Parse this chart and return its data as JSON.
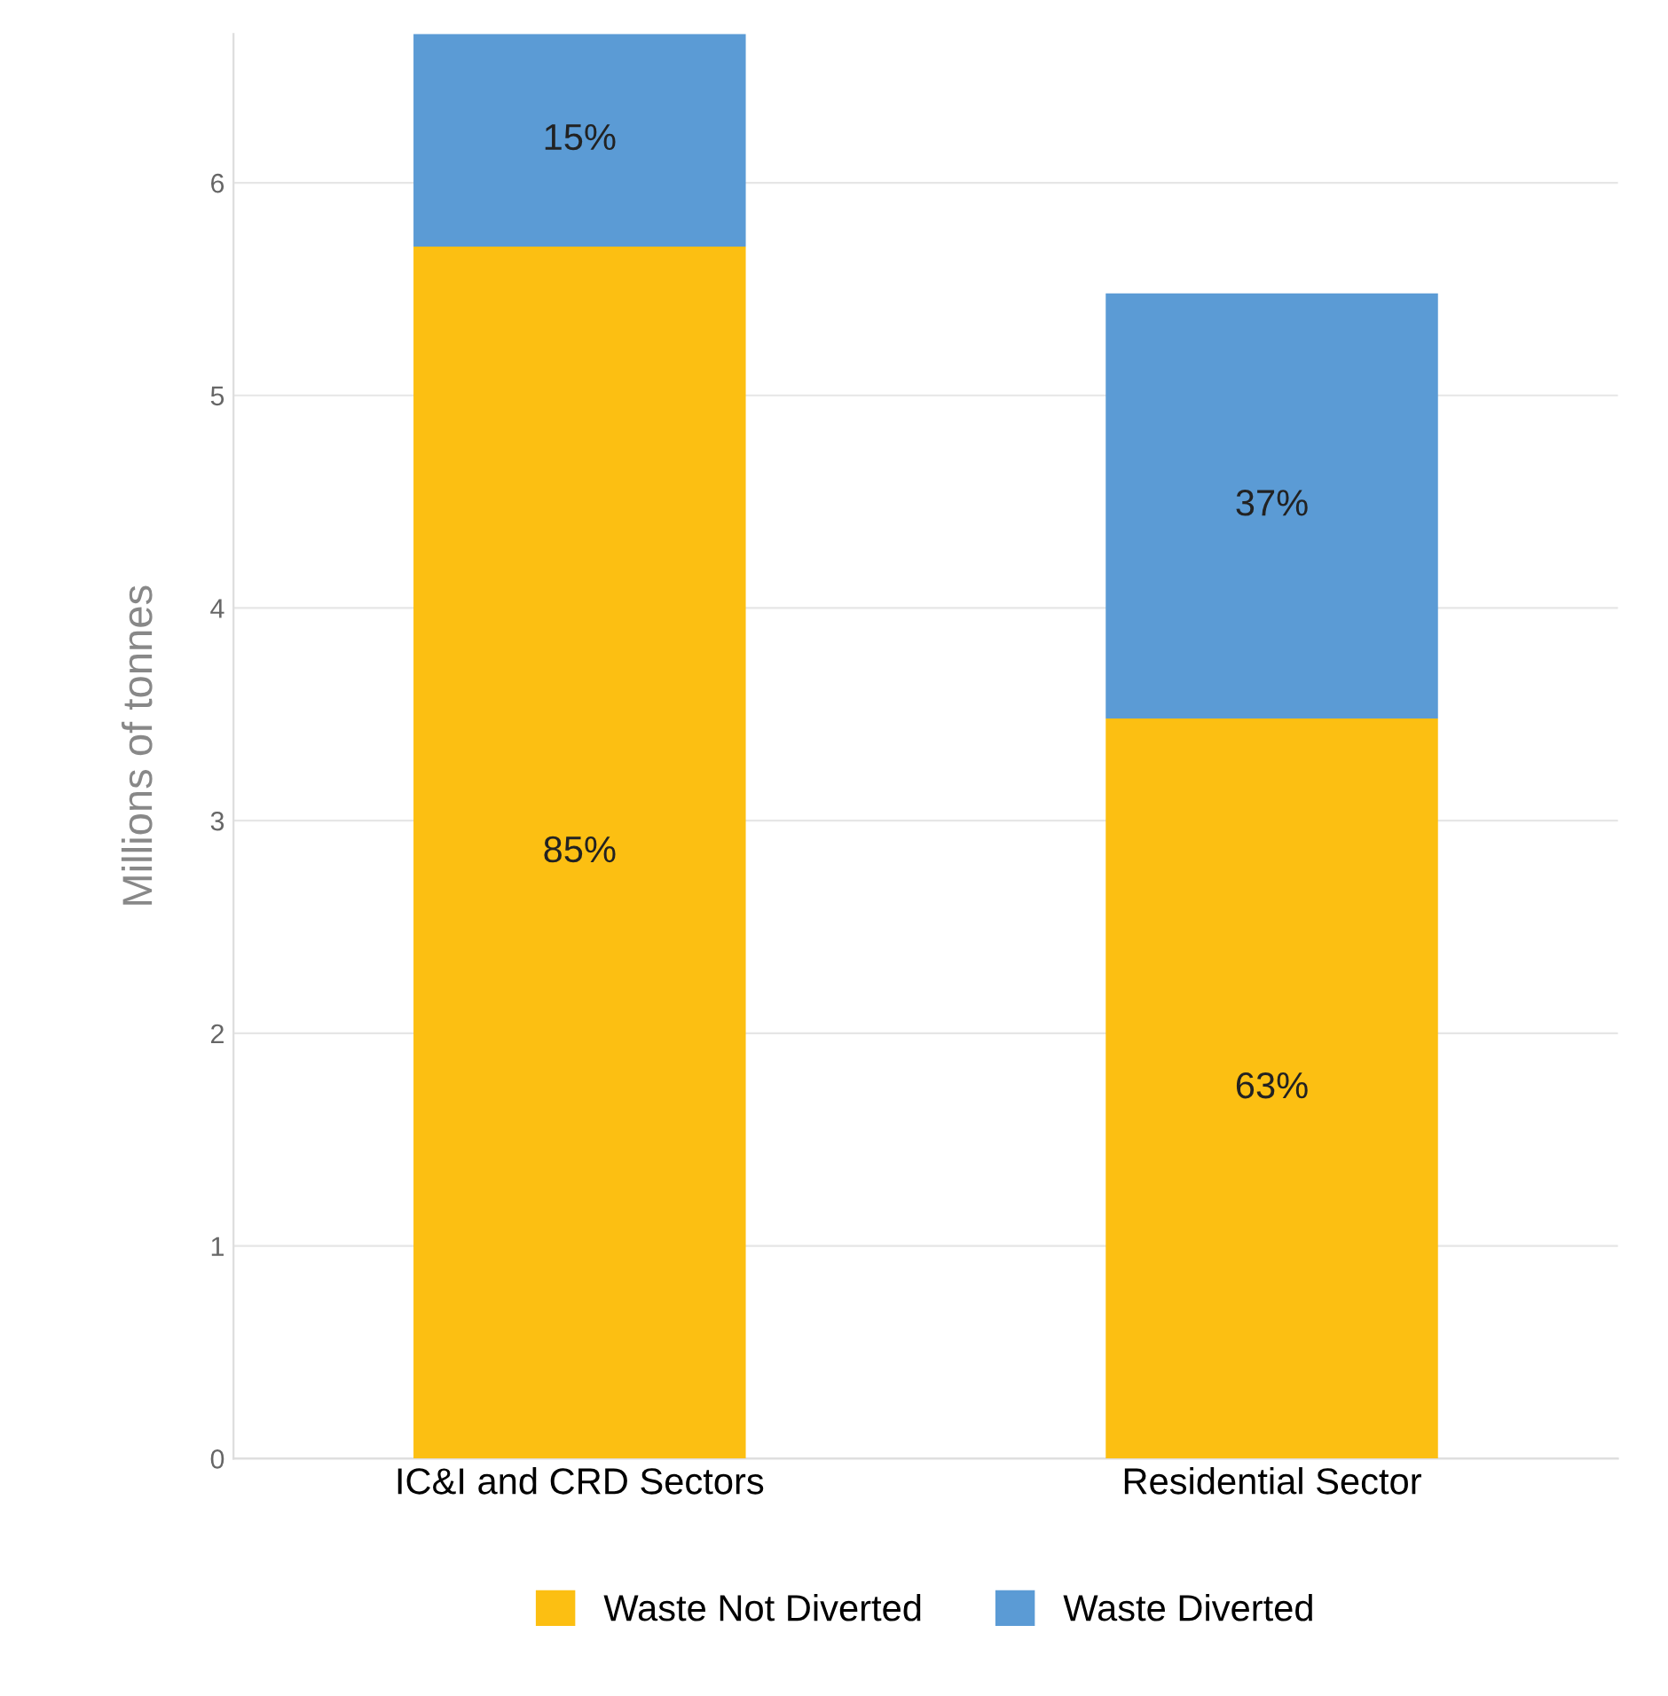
{
  "chart_data": {
    "type": "bar",
    "stacked": true,
    "ylabel": "Millions of tonnes",
    "categories": [
      "IC&I and CRD Sectors",
      "Residential Sector"
    ],
    "series": [
      {
        "name": "Waste Not Diverted",
        "color": "#fcbf12",
        "values": [
          5.7,
          3.48
        ]
      },
      {
        "name": "Waste Diverted",
        "color": "#5b9bd5",
        "values": [
          1.0,
          2.0
        ]
      }
    ],
    "annotations": [
      "85%",
      "63%",
      "15%",
      "37%"
    ],
    "ylim": [
      0,
      6.7
    ],
    "yticks": [
      0,
      1,
      2,
      3,
      4,
      5,
      6
    ],
    "grid": "y",
    "legend": "bottom"
  }
}
